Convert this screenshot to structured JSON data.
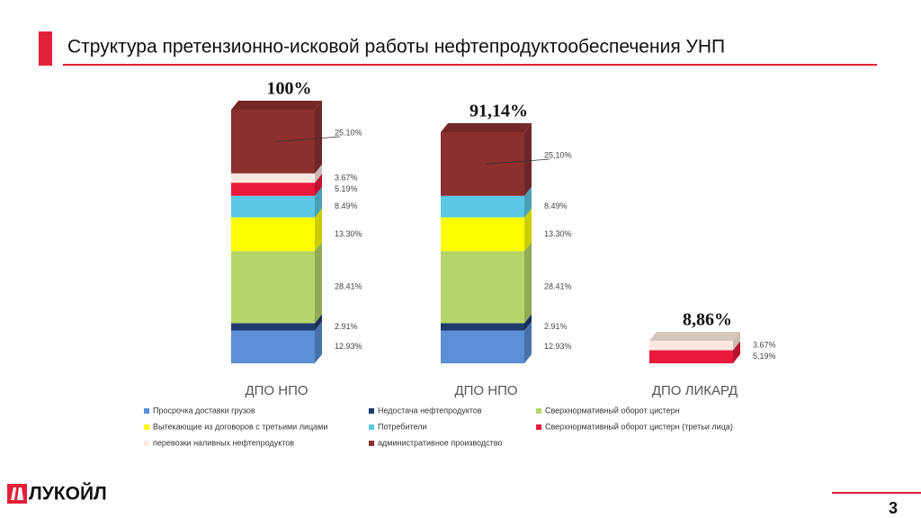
{
  "title": "Структура претензионно-исковой работы нефтепродуктообеспечения УНП",
  "logo": "ЛУКОЙЛ",
  "page_number": "3",
  "chart_data": {
    "type": "stacked-bar-3d",
    "categories": [
      "ДПО НПО",
      "ДПО НПО",
      "ДПО ЛИКАРД"
    ],
    "totals": [
      100,
      91.14,
      8.86
    ],
    "total_labels": [
      "100%",
      "91,14%",
      "8,86%"
    ],
    "series": [
      {
        "name": "Просрочка доставки грузов",
        "color": "#5b8fd6",
        "values": [
          12.93,
          12.93,
          null
        ],
        "value_labels": [
          "12.93%",
          "12.93%",
          null
        ]
      },
      {
        "name": "Недостача нефтепродуктов",
        "color": "#1f3b6e",
        "values": [
          2.91,
          2.91,
          null
        ],
        "value_labels": [
          "2.91%",
          "2.91%",
          null
        ]
      },
      {
        "name": "Сверхнормативный оборот цистерн",
        "color": "#b5d56a",
        "values": [
          28.41,
          28.41,
          null
        ],
        "value_labels": [
          "28.41%",
          "28.41%",
          null
        ]
      },
      {
        "name": "Вытекающие из договоров с третьими лицами",
        "color": "#ffff00",
        "values": [
          13.3,
          13.3,
          null
        ],
        "value_labels": [
          "13.30%",
          "13.30%",
          null
        ]
      },
      {
        "name": "Потребители",
        "color": "#5bc8e6",
        "values": [
          8.49,
          8.49,
          null
        ],
        "value_labels": [
          "8.49%",
          "8.49%",
          null
        ]
      },
      {
        "name": "Сверхнормативный оборот цистерн (третьи лица)",
        "color": "#e8193c",
        "values": [
          5.19,
          null,
          5.19
        ],
        "value_labels": [
          "5.19%",
          null,
          "5,19%"
        ]
      },
      {
        "name": "перевозки наливных нефтепродуктов",
        "color": "#fbe9df",
        "values": [
          3.67,
          null,
          3.67
        ],
        "value_labels": [
          "3.67%",
          null,
          "3.67%"
        ]
      },
      {
        "name": "административное производство",
        "color": "#8b2f2f",
        "values": [
          25.1,
          25.1,
          null
        ],
        "value_labels": [
          "25.10%",
          "25,10%",
          null
        ]
      }
    ]
  }
}
